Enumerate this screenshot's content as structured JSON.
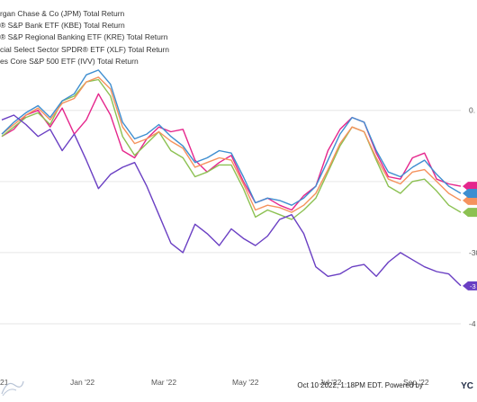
{
  "chart_data": {
    "type": "line",
    "legend": [
      "rgan Chase & Co (JPM) Total Return",
      "® S&P Bank ETF (KBE) Total Return",
      "® S&P Regional Banking ETF (KRE) Total Return",
      "cial Select Sector SPDR® ETF (XLF) Total Return",
      "es Core S&P 500 ETF (IVV) Total Return"
    ],
    "x_ticks": [
      "21",
      "Jan '22",
      "Mar '22",
      "May '22",
      "Jul '22",
      "Sep '22"
    ],
    "y_ticks": [
      "0.",
      "-30",
      "-4"
    ],
    "colors": {
      "JPM": "#6a3fc3",
      "KBE": "#3e8ed0",
      "KRE": "#f5925d",
      "XLF": "#8cc152",
      "IVV": "#e5268c"
    },
    "series": [
      {
        "key": "IVV",
        "values": [
          -5.5,
          -4.0,
          -1.0,
          0.0,
          -3.5,
          0.5,
          -5.0,
          -2.0,
          3.5,
          -1.0,
          -8.5,
          -10.0,
          -6.0,
          -3.5,
          -4.5,
          -4.0,
          -10.5,
          -13.0,
          -11.0,
          -9.5,
          -15.0,
          -19.5,
          -18.5,
          -20.0,
          -21.0,
          -18.0,
          -16.0,
          -8.5,
          -4.0,
          -1.5,
          -2.5,
          -9.0,
          -14.0,
          -14.5,
          -10.0,
          -9.0,
          -14.5,
          -15.5,
          -16.0
        ]
      },
      {
        "key": "XLF",
        "values": [
          -5.5,
          -3.5,
          -1.5,
          -0.5,
          -3.0,
          2.0,
          3.0,
          6.0,
          6.5,
          3.0,
          -5.5,
          -9.5,
          -7.0,
          -4.5,
          -8.5,
          -10.0,
          -14.0,
          -13.0,
          -11.5,
          -11.5,
          -16.5,
          -22.5,
          -21.0,
          -22.0,
          -23.0,
          -21.0,
          -18.5,
          -13.0,
          -7.5,
          -3.5,
          -4.5,
          -10.5,
          -16.0,
          -17.5,
          -15.0,
          -14.5,
          -17.0,
          -20.0,
          -21.5
        ]
      },
      {
        "key": "KRE",
        "values": [
          -5.0,
          -3.0,
          -1.0,
          0.5,
          -2.0,
          1.5,
          2.5,
          6.0,
          7.0,
          4.5,
          -3.5,
          -7.0,
          -6.0,
          -4.5,
          -6.5,
          -8.0,
          -12.0,
          -11.0,
          -10.0,
          -10.5,
          -15.5,
          -21.0,
          -20.0,
          -20.5,
          -21.5,
          -20.0,
          -17.5,
          -12.5,
          -7.0,
          -3.5,
          -4.5,
          -10.0,
          -14.5,
          -15.5,
          -13.0,
          -12.5,
          -15.0,
          -17.5,
          -19.0
        ]
      },
      {
        "key": "KBE",
        "values": [
          -5.0,
          -2.5,
          -0.5,
          1.0,
          -1.5,
          2.0,
          3.5,
          7.5,
          8.5,
          5.5,
          -2.5,
          -6.0,
          -5.0,
          -3.0,
          -5.5,
          -7.5,
          -11.0,
          -10.0,
          -8.5,
          -9.0,
          -14.0,
          -19.5,
          -18.5,
          -19.0,
          -20.0,
          -18.5,
          -16.0,
          -10.5,
          -5.0,
          -1.5,
          -2.5,
          -8.5,
          -13.0,
          -14.0,
          -12.0,
          -10.5,
          -13.5,
          -16.0,
          -17.5
        ]
      },
      {
        "key": "JPM",
        "values": [
          -2.0,
          -1.0,
          -3.0,
          -5.5,
          -4.0,
          -8.5,
          -5.0,
          -10.5,
          -16.5,
          -13.5,
          -12.0,
          -11.0,
          -16.0,
          -22.0,
          -28.0,
          -30.0,
          -24.0,
          -26.0,
          -28.5,
          -25.0,
          -27.0,
          -28.5,
          -26.5,
          -23.0,
          -22.0,
          -26.0,
          -33.0,
          -35.0,
          -34.5,
          -33.0,
          -32.5,
          -35.0,
          -32.0,
          -30.0,
          -31.5,
          -33.0,
          -34.0,
          -34.5,
          -37.0
        ]
      }
    ],
    "end_labels": [
      "",
      "",
      "",
      "",
      "-3"
    ],
    "footer": "Oct 10 2022, 1:18PM EDT. Powered by ",
    "brand": "YC"
  }
}
